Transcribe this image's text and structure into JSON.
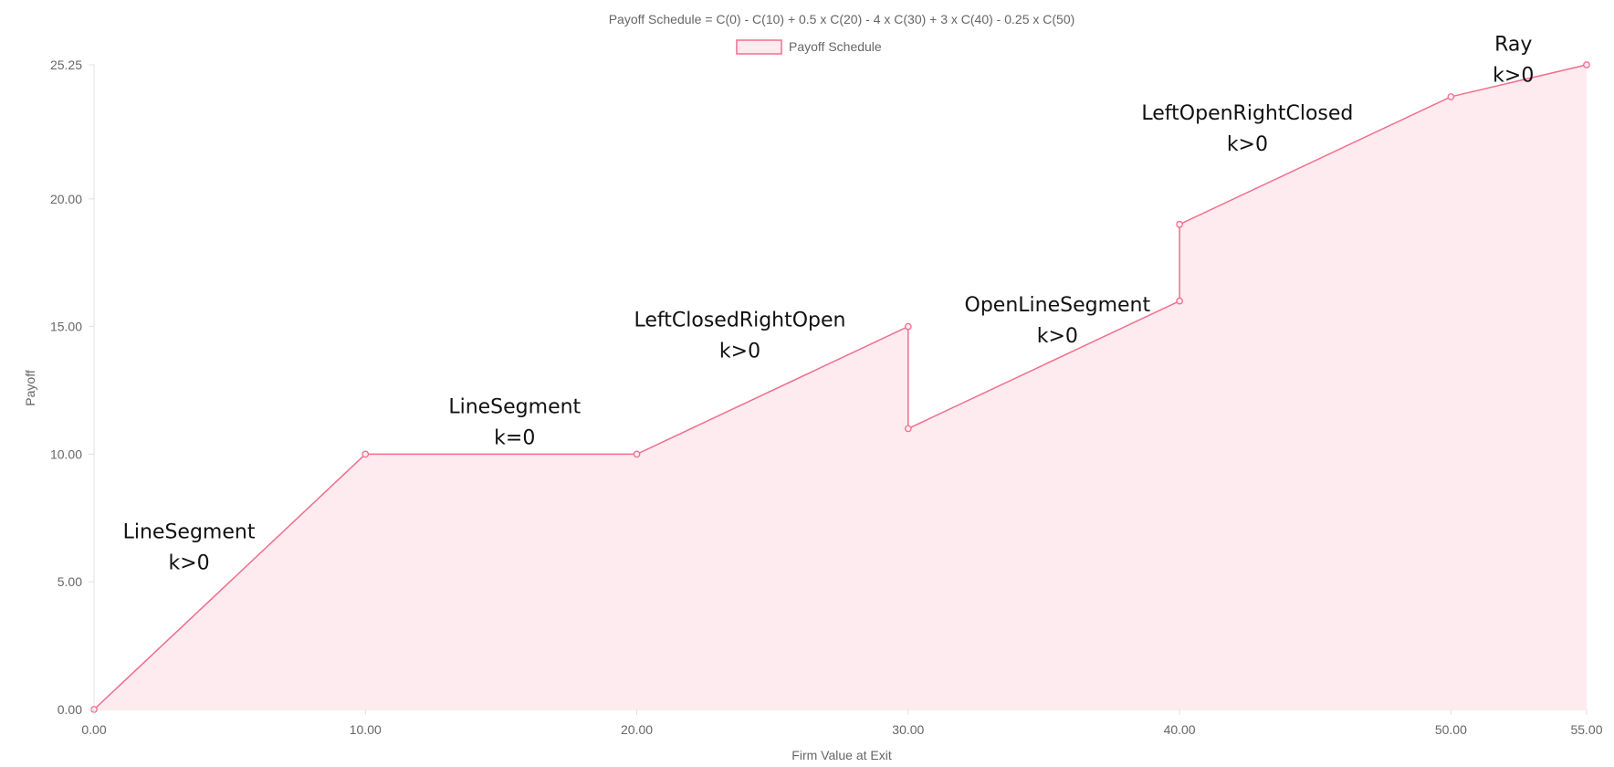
{
  "chart_data": {
    "type": "line",
    "title": "Payoff Schedule = C(0) - C(10) + 0.5 x C(20) - 4 x C(30) + 3 x C(40) - 0.25 x C(50)",
    "xlabel": "Firm Value at Exit",
    "ylabel": "Payoff",
    "xlim": [
      0,
      55
    ],
    "ylim": [
      0,
      25.25
    ],
    "x_ticks": [
      "0.00",
      "10.00",
      "20.00",
      "30.00",
      "40.00",
      "50.00",
      "55.00"
    ],
    "y_ticks": [
      "0.00",
      "5.00",
      "10.00",
      "15.00",
      "20.00",
      "25.25"
    ],
    "x_tick_values": [
      0,
      10,
      20,
      30,
      40,
      50,
      55
    ],
    "y_tick_values": [
      0,
      5,
      10,
      15,
      20,
      25.25
    ],
    "legend": {
      "position": "top-center",
      "entries": [
        "Payoff Schedule"
      ]
    },
    "grid": false,
    "colors": {
      "line": "#f06e8c",
      "fill": "#fdebf0"
    },
    "series": [
      {
        "name": "Payoff Schedule",
        "points": [
          {
            "x": 0,
            "y": 0
          },
          {
            "x": 10,
            "y": 10
          },
          {
            "x": 20,
            "y": 10
          },
          {
            "x": 30,
            "y": 15
          },
          {
            "x": 30,
            "y": 11
          },
          {
            "x": 40,
            "y": 16
          },
          {
            "x": 40,
            "y": 19
          },
          {
            "x": 50,
            "y": 24
          },
          {
            "x": 55,
            "y": 25.25
          }
        ]
      }
    ],
    "annotations": [
      {
        "x": 3.5,
        "y": 6.7,
        "lines": [
          "LineSegment",
          "k>0"
        ]
      },
      {
        "x": 15.5,
        "y": 11.6,
        "lines": [
          "LineSegment",
          "k=0"
        ]
      },
      {
        "x": 23.8,
        "y": 15.0,
        "lines": [
          "LeftClosedRightOpen",
          "k>0"
        ]
      },
      {
        "x": 35.5,
        "y": 15.6,
        "lines": [
          "OpenLineSegment",
          "k>0"
        ]
      },
      {
        "x": 42.5,
        "y": 23.1,
        "lines": [
          "LeftOpenRightClosed",
          "k>0"
        ]
      },
      {
        "x": 52.3,
        "y": 25.8,
        "lines": [
          "Ray",
          "k>0"
        ]
      }
    ]
  }
}
